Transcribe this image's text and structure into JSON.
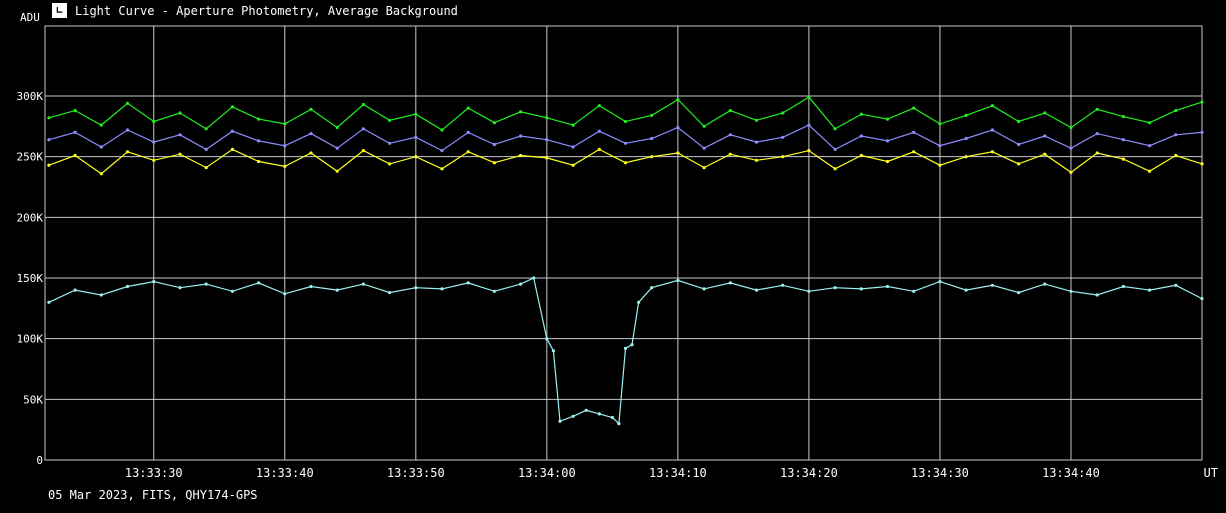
{
  "window": {
    "title": "Light Curve - Aperture Photometry, Average Background",
    "icon": "lightcurve-app-icon"
  },
  "footer": {
    "info": "05 Mar 2023, FITS, QHY174-GPS"
  },
  "colors": {
    "background": "#000000",
    "grid": "#c8c8c8",
    "axis_text": "#ffffff",
    "green": "#22ee22",
    "blue": "#8c8cff",
    "yellow": "#ffff22",
    "cyan": "#9cf0f0"
  },
  "chart_data": {
    "type": "line",
    "ylabel": "ADU",
    "xlabel": "UT",
    "ylim": [
      0,
      300000
    ],
    "y_ticks": [
      {
        "value": 0,
        "label": "0"
      },
      {
        "value": 50000,
        "label": "50K"
      },
      {
        "value": 100000,
        "label": "100K"
      },
      {
        "value": 150000,
        "label": "150K"
      },
      {
        "value": 200000,
        "label": "200K"
      },
      {
        "value": 250000,
        "label": "250K"
      },
      {
        "value": 300000,
        "label": "300K"
      }
    ],
    "x_ticks": [
      "13:33:30",
      "13:33:40",
      "13:33:50",
      "13:34:00",
      "13:34:10",
      "13:34:20",
      "13:34:30",
      "13:34:40"
    ],
    "x_tick_seconds": [
      30,
      40,
      50,
      60,
      70,
      80,
      90,
      100
    ],
    "xlim_seconds": [
      21.7,
      110
    ],
    "xlim": [
      "13:33:21.7",
      "13:34:50.0"
    ],
    "grid": true,
    "series": [
      {
        "color_key": "green",
        "x": [
          "13:33:22",
          "13:33:24",
          "13:33:26",
          "13:33:28",
          "13:33:30",
          "13:33:32",
          "13:33:34",
          "13:33:36",
          "13:33:38",
          "13:33:40",
          "13:33:42",
          "13:33:44",
          "13:33:46",
          "13:33:48",
          "13:33:50",
          "13:33:52",
          "13:33:54",
          "13:33:56",
          "13:33:58",
          "13:34:00",
          "13:34:02",
          "13:34:04",
          "13:34:06",
          "13:34:08",
          "13:34:10",
          "13:34:12",
          "13:34:14",
          "13:34:16",
          "13:34:18",
          "13:34:20",
          "13:34:22",
          "13:34:24",
          "13:34:26",
          "13:34:28",
          "13:34:30",
          "13:34:32",
          "13:34:34",
          "13:34:36",
          "13:34:38",
          "13:34:40",
          "13:34:42",
          "13:34:44",
          "13:34:46",
          "13:34:48",
          "13:34:50"
        ],
        "values": [
          282000,
          288000,
          276000,
          294000,
          279000,
          286000,
          273000,
          291000,
          281000,
          277000,
          289000,
          274000,
          293000,
          280000,
          285000,
          272000,
          290000,
          278000,
          287000,
          282000,
          276000,
          292000,
          279000,
          284000,
          297000,
          275000,
          288000,
          280000,
          286000,
          299000,
          273000,
          285000,
          281000,
          290000,
          277000,
          284000,
          292000,
          279000,
          286000,
          274000,
          289000,
          283000,
          278000,
          288000,
          295000
        ]
      },
      {
        "color_key": "blue",
        "x": [
          "13:33:22",
          "13:33:24",
          "13:33:26",
          "13:33:28",
          "13:33:30",
          "13:33:32",
          "13:33:34",
          "13:33:36",
          "13:33:38",
          "13:33:40",
          "13:33:42",
          "13:33:44",
          "13:33:46",
          "13:33:48",
          "13:33:50",
          "13:33:52",
          "13:33:54",
          "13:33:56",
          "13:33:58",
          "13:34:00",
          "13:34:02",
          "13:34:04",
          "13:34:06",
          "13:34:08",
          "13:34:10",
          "13:34:12",
          "13:34:14",
          "13:34:16",
          "13:34:18",
          "13:34:20",
          "13:34:22",
          "13:34:24",
          "13:34:26",
          "13:34:28",
          "13:34:30",
          "13:34:32",
          "13:34:34",
          "13:34:36",
          "13:34:38",
          "13:34:40",
          "13:34:42",
          "13:34:44",
          "13:34:46",
          "13:34:48",
          "13:34:50"
        ],
        "values": [
          264000,
          270000,
          258000,
          272000,
          262000,
          268000,
          256000,
          271000,
          263000,
          259000,
          269000,
          257000,
          273000,
          261000,
          266000,
          255000,
          270000,
          260000,
          267000,
          264000,
          258000,
          271000,
          261000,
          265000,
          274000,
          257000,
          268000,
          262000,
          266000,
          276000,
          256000,
          267000,
          263000,
          270000,
          259000,
          265000,
          272000,
          260000,
          267000,
          257000,
          269000,
          264000,
          259000,
          268000,
          270000
        ]
      },
      {
        "color_key": "yellow",
        "x": [
          "13:33:22",
          "13:33:24",
          "13:33:26",
          "13:33:28",
          "13:33:30",
          "13:33:32",
          "13:33:34",
          "13:33:36",
          "13:33:38",
          "13:33:40",
          "13:33:42",
          "13:33:44",
          "13:33:46",
          "13:33:48",
          "13:33:50",
          "13:33:52",
          "13:33:54",
          "13:33:56",
          "13:33:58",
          "13:34:00",
          "13:34:02",
          "13:34:04",
          "13:34:06",
          "13:34:08",
          "13:34:10",
          "13:34:12",
          "13:34:14",
          "13:34:16",
          "13:34:18",
          "13:34:20",
          "13:34:22",
          "13:34:24",
          "13:34:26",
          "13:34:28",
          "13:34:30",
          "13:34:32",
          "13:34:34",
          "13:34:36",
          "13:34:38",
          "13:34:40",
          "13:34:42",
          "13:34:44",
          "13:34:46",
          "13:34:48",
          "13:34:50"
        ],
        "values": [
          243000,
          251000,
          236000,
          254000,
          247000,
          252000,
          241000,
          256000,
          246000,
          242000,
          253000,
          238000,
          255000,
          244000,
          250000,
          240000,
          254000,
          245000,
          251000,
          249000,
          243000,
          256000,
          245000,
          250000,
          253000,
          241000,
          252000,
          247000,
          250000,
          255000,
          240000,
          251000,
          246000,
          254000,
          243000,
          250000,
          254000,
          244000,
          252000,
          237000,
          253000,
          248000,
          238000,
          251000,
          244000
        ]
      },
      {
        "color_key": "cyan",
        "x": [
          "13:33:22",
          "13:33:24",
          "13:33:26",
          "13:33:28",
          "13:33:30",
          "13:33:32",
          "13:33:34",
          "13:33:36",
          "13:33:38",
          "13:33:40",
          "13:33:42",
          "13:33:44",
          "13:33:46",
          "13:33:48",
          "13:33:50",
          "13:33:52",
          "13:33:54",
          "13:33:56",
          "13:33:58",
          "13:33:59",
          "13:34:00",
          "13:34:00.5",
          "13:34:01",
          "13:34:02",
          "13:34:03",
          "13:34:04",
          "13:34:05",
          "13:34:05.5",
          "13:34:06",
          "13:34:06.5",
          "13:34:07",
          "13:34:08",
          "13:34:10",
          "13:34:12",
          "13:34:14",
          "13:34:16",
          "13:34:18",
          "13:34:20",
          "13:34:22",
          "13:34:24",
          "13:34:26",
          "13:34:28",
          "13:34:30",
          "13:34:32",
          "13:34:34",
          "13:34:36",
          "13:34:38",
          "13:34:40",
          "13:34:42",
          "13:34:44",
          "13:34:46",
          "13:34:48",
          "13:34:50"
        ],
        "values": [
          130000,
          140000,
          136000,
          143000,
          147000,
          142000,
          145000,
          139000,
          146000,
          137000,
          143000,
          140000,
          145000,
          138000,
          142000,
          141000,
          146000,
          139000,
          145000,
          150000,
          100000,
          90000,
          32000,
          36000,
          41000,
          38000,
          35000,
          30000,
          92000,
          95000,
          130000,
          142000,
          148000,
          141000,
          146000,
          140000,
          144000,
          139000,
          142000,
          141000,
          143000,
          139000,
          147000,
          140000,
          144000,
          138000,
          145000,
          139000,
          136000,
          143000,
          140000,
          144000,
          133000
        ]
      }
    ]
  }
}
